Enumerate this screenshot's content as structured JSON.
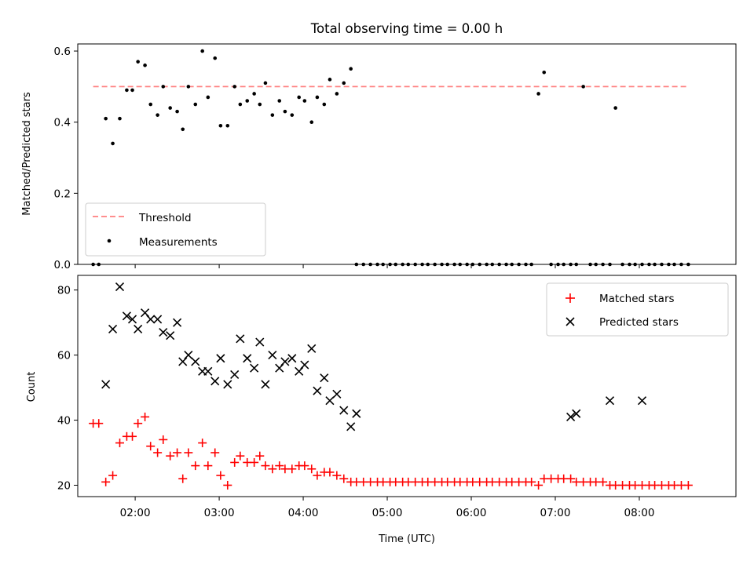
{
  "title": "Total observing time = 0.00 h",
  "colors": {
    "threshold": "#ff7f7f",
    "measurement": "#000000",
    "matched": "#ff0000",
    "predicted": "#000000"
  },
  "chart_data": [
    {
      "type": "scatter",
      "ylabel": "Matched/Predicted stars",
      "xlim": [
        "01:19",
        "09:09"
      ],
      "ylim": [
        0,
        0.62
      ],
      "yticks": [
        0.0,
        0.2,
        0.4,
        0.6
      ],
      "ytick_labels": [
        "0.0",
        "0.2",
        "0.4",
        "0.6"
      ],
      "legend": {
        "position": "lower-left",
        "entries": [
          "Threshold",
          "Measurements"
        ]
      },
      "threshold": {
        "name": "Threshold",
        "y": 0.5,
        "x_range": [
          "01:30",
          "08:35"
        ]
      },
      "series": [
        {
          "name": "Measurements",
          "x": [
            "01:30",
            "01:34",
            "01:39",
            "01:44",
            "01:49",
            "01:54",
            "01:58",
            "02:02",
            "02:07",
            "02:11",
            "02:16",
            "02:20",
            "02:25",
            "02:30",
            "02:34",
            "02:38",
            "02:43",
            "02:48",
            "02:52",
            "02:57",
            "03:01",
            "03:06",
            "03:11",
            "03:15",
            "03:20",
            "03:25",
            "03:29",
            "03:33",
            "03:38",
            "03:43",
            "03:47",
            "03:52",
            "03:57",
            "04:01",
            "04:06",
            "04:10",
            "04:15",
            "04:19",
            "04:24",
            "04:29",
            "04:34",
            "04:38",
            "04:43",
            "04:48",
            "04:53",
            "04:57",
            "05:02",
            "05:06",
            "05:11",
            "05:15",
            "05:20",
            "05:25",
            "05:29",
            "05:34",
            "05:39",
            "05:43",
            "05:48",
            "05:52",
            "05:57",
            "06:01",
            "06:06",
            "06:11",
            "06:15",
            "06:20",
            "06:25",
            "06:29",
            "06:34",
            "06:39",
            "06:43",
            "06:48",
            "06:52",
            "06:57",
            "07:02",
            "07:06",
            "07:11",
            "07:15",
            "07:20",
            "07:25",
            "07:29",
            "07:34",
            "07:39",
            "07:43",
            "07:48",
            "07:53",
            "07:57",
            "08:02",
            "08:07",
            "08:11",
            "08:16",
            "08:21",
            "08:25",
            "08:30",
            "08:35"
          ],
          "y": [
            0.0,
            0.0,
            0.41,
            0.34,
            0.41,
            0.49,
            0.49,
            0.57,
            0.56,
            0.45,
            0.42,
            0.5,
            0.44,
            0.43,
            0.38,
            0.5,
            0.45,
            0.6,
            0.47,
            0.58,
            0.39,
            0.39,
            0.5,
            0.45,
            0.46,
            0.48,
            0.45,
            0.51,
            0.42,
            0.46,
            0.43,
            0.42,
            0.47,
            0.46,
            0.4,
            0.47,
            0.45,
            0.52,
            0.48,
            0.51,
            0.55,
            0.0,
            0.0,
            0.0,
            0.0,
            0.0,
            0.0,
            0.0,
            0.0,
            0.0,
            0.0,
            0.0,
            0.0,
            0.0,
            0.0,
            0.0,
            0.0,
            0.0,
            0.0,
            0.0,
            0.0,
            0.0,
            0.0,
            0.0,
            0.0,
            0.0,
            0.0,
            0.0,
            0.0,
            0.48,
            0.54,
            0.0,
            0.0,
            0.0,
            0.0,
            0.0,
            0.5,
            0.0,
            0.0,
            0.0,
            0.0,
            0.44,
            0.0,
            0.0,
            0.0,
            0.0,
            0.0,
            0.0,
            0.0,
            0.0,
            0.0,
            0.0,
            0.0
          ]
        }
      ]
    },
    {
      "type": "scatter",
      "xlabel": "Time (UTC)",
      "ylabel": "Count",
      "xlim": [
        "01:19",
        "09:09"
      ],
      "ylim": [
        16.5,
        84.5
      ],
      "xticks": [
        "02:00",
        "03:00",
        "04:00",
        "05:00",
        "06:00",
        "07:00",
        "08:00"
      ],
      "yticks": [
        20,
        40,
        60,
        80
      ],
      "ytick_labels": [
        "20",
        "40",
        "60",
        "80"
      ],
      "legend": {
        "position": "upper-right",
        "entries": [
          "Matched stars",
          "Predicted stars"
        ]
      },
      "series": [
        {
          "name": "Matched stars",
          "marker": "+",
          "x": [
            "01:30",
            "01:34",
            "01:39",
            "01:44",
            "01:49",
            "01:54",
            "01:58",
            "02:02",
            "02:07",
            "02:11",
            "02:16",
            "02:20",
            "02:25",
            "02:30",
            "02:34",
            "02:38",
            "02:43",
            "02:48",
            "02:52",
            "02:57",
            "03:01",
            "03:06",
            "03:11",
            "03:15",
            "03:20",
            "03:25",
            "03:29",
            "03:33",
            "03:38",
            "03:43",
            "03:47",
            "03:52",
            "03:57",
            "04:01",
            "04:06",
            "04:10",
            "04:15",
            "04:19",
            "04:24",
            "04:29",
            "04:34",
            "04:38",
            "04:43",
            "04:48",
            "04:53",
            "04:57",
            "05:02",
            "05:06",
            "05:11",
            "05:15",
            "05:20",
            "05:25",
            "05:29",
            "05:34",
            "05:39",
            "05:43",
            "05:48",
            "05:52",
            "05:57",
            "06:01",
            "06:06",
            "06:11",
            "06:15",
            "06:20",
            "06:25",
            "06:29",
            "06:34",
            "06:39",
            "06:43",
            "06:48",
            "06:52",
            "06:57",
            "07:02",
            "07:06",
            "07:11",
            "07:15",
            "07:20",
            "07:25",
            "07:29",
            "07:34",
            "07:39",
            "07:43",
            "07:48",
            "07:53",
            "07:57",
            "08:02",
            "08:07",
            "08:11",
            "08:16",
            "08:21",
            "08:25",
            "08:30",
            "08:35"
          ],
          "y": [
            39,
            39,
            21,
            23,
            33,
            35,
            35,
            39,
            41,
            32,
            30,
            34,
            29,
            30,
            22,
            30,
            26,
            33,
            26,
            30,
            23,
            20,
            27,
            29,
            27,
            27,
            29,
            26,
            25,
            26,
            25,
            25,
            26,
            26,
            25,
            23,
            24,
            24,
            23,
            22,
            21,
            21,
            21,
            21,
            21,
            21,
            21,
            21,
            21,
            21,
            21,
            21,
            21,
            21,
            21,
            21,
            21,
            21,
            21,
            21,
            21,
            21,
            21,
            21,
            21,
            21,
            21,
            21,
            21,
            20,
            22,
            22,
            22,
            22,
            22,
            21,
            21,
            21,
            21,
            21,
            20,
            20,
            20,
            20,
            20,
            20,
            20,
            20,
            20,
            20,
            20,
            20,
            20
          ]
        },
        {
          "name": "Predicted stars",
          "marker": "x",
          "x": [
            "01:39",
            "01:44",
            "01:49",
            "01:54",
            "01:58",
            "02:02",
            "02:07",
            "02:11",
            "02:16",
            "02:20",
            "02:25",
            "02:30",
            "02:34",
            "02:38",
            "02:43",
            "02:48",
            "02:52",
            "02:57",
            "03:01",
            "03:06",
            "03:11",
            "03:15",
            "03:20",
            "03:25",
            "03:29",
            "03:33",
            "03:38",
            "03:43",
            "03:47",
            "03:52",
            "03:57",
            "04:01",
            "04:06",
            "04:10",
            "04:15",
            "04:19",
            "04:24",
            "04:29",
            "04:34",
            "04:38",
            "07:11",
            "07:15",
            "07:39",
            "08:02"
          ],
          "y": [
            51,
            68,
            81,
            72,
            71,
            68,
            73,
            71,
            71,
            67,
            66,
            70,
            58,
            60,
            58,
            55,
            55,
            52,
            59,
            51,
            54,
            65,
            59,
            56,
            64,
            51,
            60,
            56,
            58,
            59,
            55,
            57,
            62,
            49,
            53,
            46,
            48,
            43,
            38,
            42,
            41,
            42,
            46,
            46
          ]
        }
      ]
    }
  ]
}
